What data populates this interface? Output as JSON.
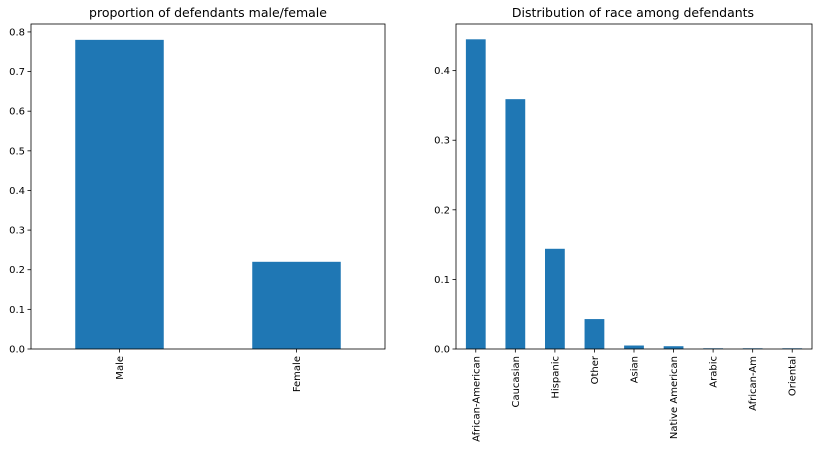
{
  "chart_data": [
    {
      "type": "bar",
      "title": "proportion of defendants male/female",
      "categories": [
        "Male",
        "Female"
      ],
      "values": [
        0.78,
        0.22
      ],
      "xlabel": "",
      "ylabel": "",
      "ylim": [
        0,
        0.82
      ],
      "yticks": [
        "0.0",
        "0.1",
        "0.2",
        "0.3",
        "0.4",
        "0.5",
        "0.6",
        "0.7",
        "0.8"
      ],
      "color": "#1f77b4",
      "grid": false,
      "legend": false
    },
    {
      "type": "bar",
      "title": "Distribution of race among defendants",
      "categories": [
        "African-American",
        "Caucasian",
        "Hispanic",
        "Other",
        "Asian",
        "Native American",
        "Arabic",
        "African-Am",
        "Oriental"
      ],
      "values": [
        0.445,
        0.359,
        0.144,
        0.043,
        0.005,
        0.004,
        0.001,
        0.001,
        0.001
      ],
      "xlabel": "",
      "ylabel": "",
      "ylim": [
        0,
        0.467
      ],
      "yticks": [
        "0.0",
        "0.1",
        "0.2",
        "0.3",
        "0.4"
      ],
      "color": "#1f77b4",
      "grid": false,
      "legend": false
    }
  ]
}
